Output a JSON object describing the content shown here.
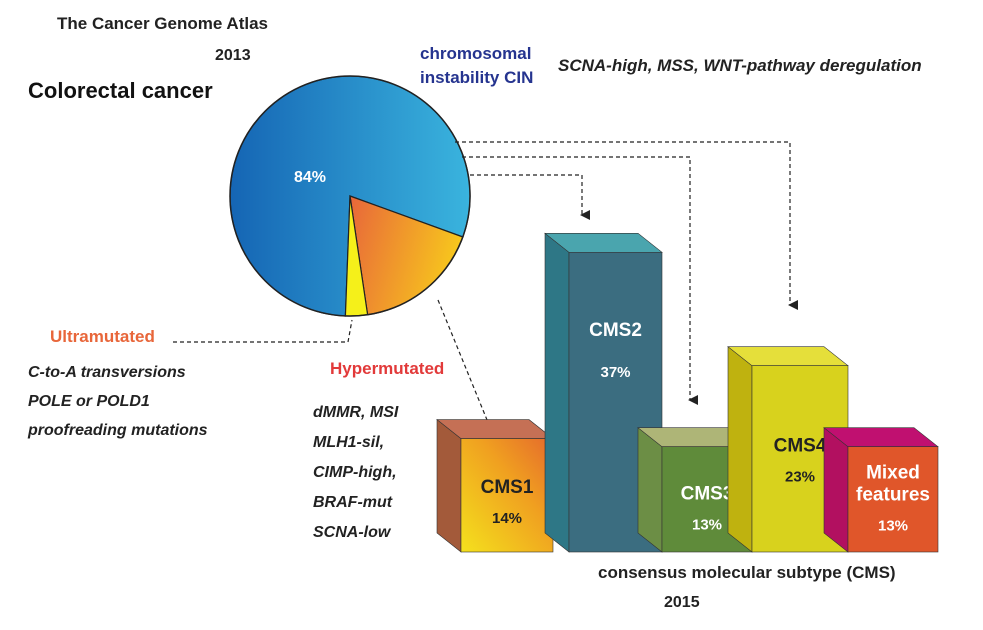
{
  "header": {
    "atlas": "The Cancer Genome Atlas",
    "atlas_year": "2013",
    "disease": "Colorectal cancer"
  },
  "pie": {
    "main_label": "84%",
    "slices": [
      {
        "name": "chromosomal instability CIN",
        "value": 84,
        "colors": [
          "#1565b4",
          "#3ab4de"
        ]
      },
      {
        "name": "Hypermutated",
        "value": 13,
        "colors": [
          "#e8663a",
          "#f7c61d"
        ]
      },
      {
        "name": "Ultramutated",
        "value": 3,
        "colors": [
          "#f5f01a",
          "#f5f01a"
        ]
      }
    ]
  },
  "groups": {
    "cin_label": "chromosomal instability CIN",
    "cin_features": "SCNA-high,  MSS,  WNT-pathway deregulation",
    "ultra_label": "Ultramutated",
    "ultra_features": [
      "C-to-A transversions",
      "POLE or POLD1",
      "proofreading mutations"
    ],
    "hyper_label": "Hypermutated",
    "hyper_features": [
      "dMMR,  MSI",
      "MLH1-sil,",
      "CIMP-high,",
      "BRAF-mut",
      "SCNA-low"
    ]
  },
  "chart_data": {
    "type": "bar",
    "categories": [
      "CMS1",
      "CMS2",
      "CMS3",
      "CMS4",
      "Mixed features"
    ],
    "values": [
      14,
      37,
      13,
      23,
      13
    ],
    "value_labels": [
      "14%",
      "37%",
      "13%",
      "23%",
      "13%"
    ],
    "colors": [
      "#f0a020",
      "#3b6d80",
      "#5f8b3a",
      "#d8d21d",
      "#e0562a"
    ]
  },
  "footer": {
    "title": "consensus molecular subtype (CMS)",
    "year": "2015"
  }
}
